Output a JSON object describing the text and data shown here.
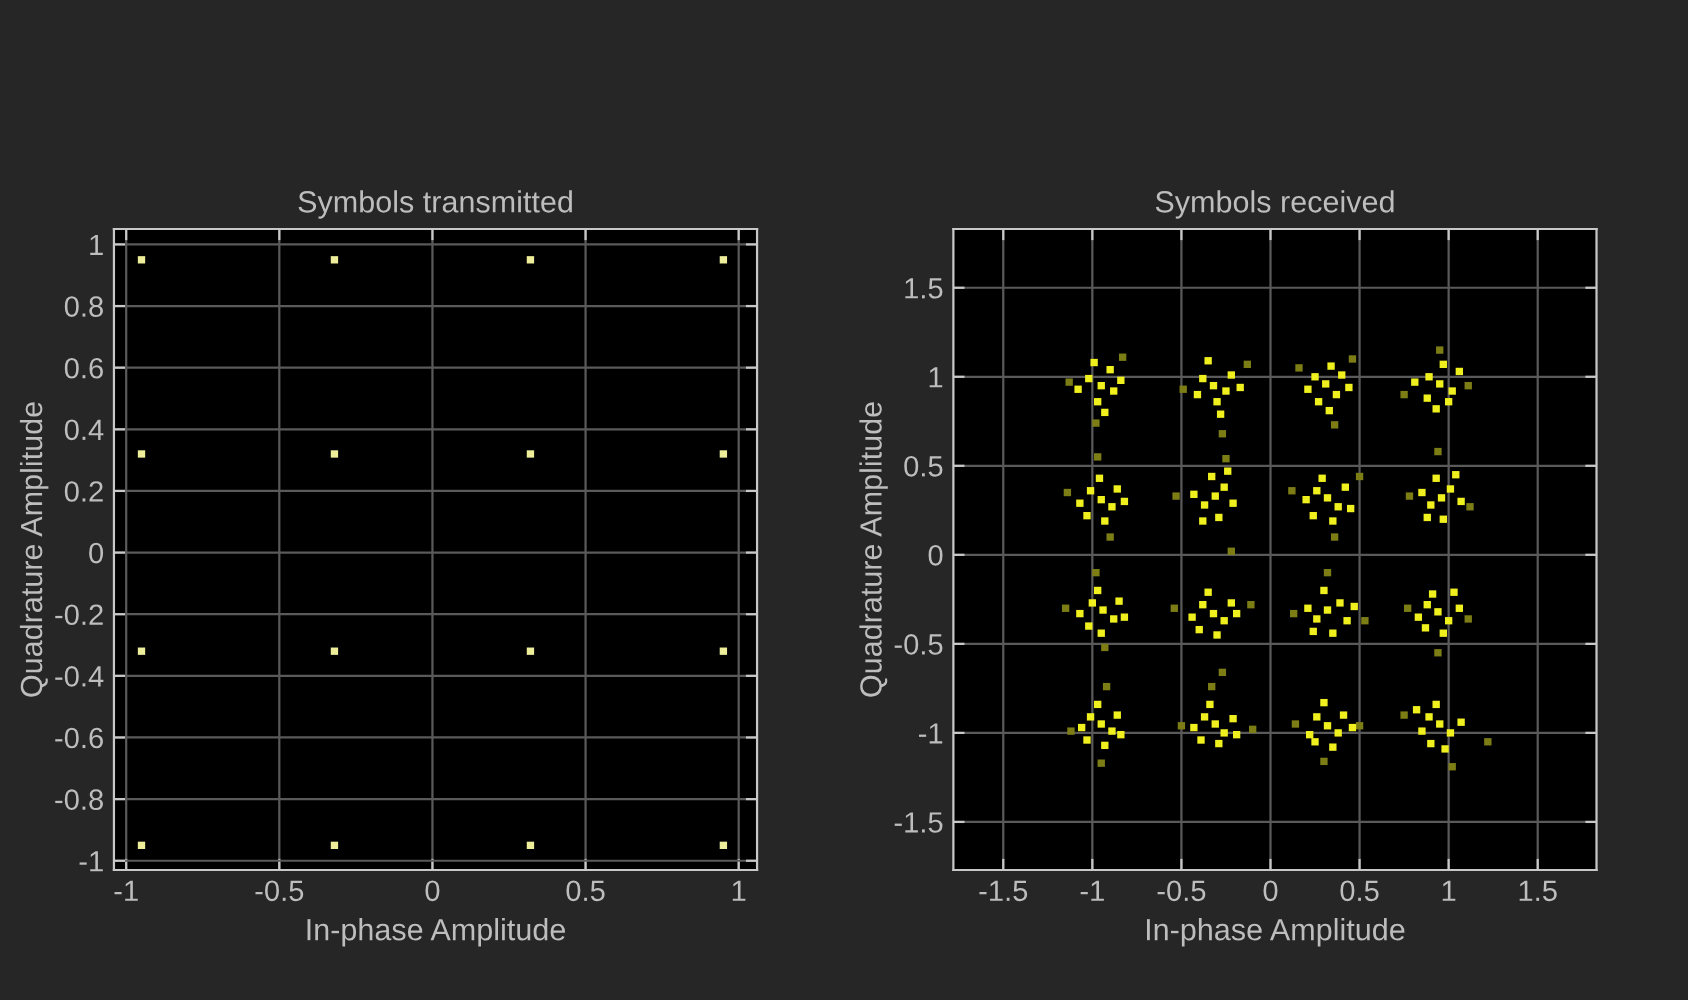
{
  "chart_data": [
    {
      "type": "scatter",
      "title": "Symbols transmitted",
      "xlabel": "In-phase Amplitude",
      "ylabel": "Quadrature Amplitude",
      "xlim": [
        -1.04,
        1.06
      ],
      "ylim": [
        -1.03,
        1.05
      ],
      "xticks": [
        -1,
        -0.5,
        0,
        0.5,
        1
      ],
      "yticks": [
        -1,
        -0.8,
        -0.6,
        -0.4,
        -0.2,
        0,
        0.2,
        0.4,
        0.6,
        0.8,
        1
      ],
      "grid": true,
      "marker": "square",
      "series": [
        {
          "color": "#eded9a",
          "x": [
            -0.95,
            -0.32,
            0.32,
            0.95,
            -0.95,
            -0.32,
            0.32,
            0.95,
            -0.95,
            -0.32,
            0.32,
            0.95,
            -0.95,
            -0.32,
            0.32,
            0.95
          ],
          "values": [
            0.95,
            0.95,
            0.95,
            0.95,
            0.32,
            0.32,
            0.32,
            0.32,
            -0.32,
            -0.32,
            -0.32,
            -0.32,
            -0.95,
            -0.95,
            -0.95,
            -0.95
          ]
        }
      ]
    },
    {
      "type": "scatter",
      "title": "Symbols received",
      "xlabel": "In-phase Amplitude",
      "ylabel": "Quadrature Amplitude",
      "xlim": [
        -1.78,
        1.83
      ],
      "ylim": [
        -1.77,
        1.83
      ],
      "xticks": [
        -1.5,
        -1,
        -0.5,
        0,
        0.5,
        1,
        1.5
      ],
      "yticks": [
        -1.5,
        -1,
        -0.5,
        0,
        0.5,
        1,
        1.5
      ],
      "grid": true,
      "marker": "square",
      "series": [
        {
          "color": "#7d7d16",
          "x": [
            -1.13,
            -0.83,
            -0.98,
            -0.49,
            -0.13,
            -0.27,
            0.16,
            0.46,
            0.36,
            0.75,
            1.11,
            0.95,
            -1.14,
            -0.97,
            -0.9,
            -0.53,
            -0.25,
            -0.22,
            0.12,
            0.5,
            0.36,
            0.78,
            1.12,
            0.94,
            -1.15,
            -0.93,
            -0.98,
            -0.54,
            -0.11,
            -0.27,
            0.13,
            0.53,
            0.32,
            0.77,
            1.11,
            0.94,
            -1.12,
            -0.95,
            -0.92,
            -0.5,
            -0.1,
            -0.33,
            0.14,
            0.5,
            0.3,
            0.75,
            1.22,
            1.02
          ],
          "values": [
            0.97,
            1.11,
            0.74,
            0.93,
            1.07,
            0.68,
            1.05,
            1.1,
            0.73,
            0.9,
            0.95,
            1.15,
            0.35,
            0.55,
            0.1,
            0.33,
            0.54,
            0.02,
            0.36,
            0.44,
            0.1,
            0.33,
            0.27,
            0.58,
            -0.3,
            -0.52,
            -0.1,
            -0.3,
            -0.28,
            -0.66,
            -0.33,
            -0.37,
            -0.1,
            -0.3,
            -0.36,
            -0.55,
            -0.99,
            -1.17,
            -0.74,
            -0.96,
            -0.98,
            -0.74,
            -0.95,
            -0.96,
            -1.16,
            -0.9,
            -1.05,
            -1.19
          ]
        },
        {
          "color": "#f0f01e",
          "x": [
            -0.95,
            -1.02,
            -0.88,
            -0.97,
            -0.9,
            -1.08,
            -0.84,
            -0.99,
            -0.93,
            -0.32,
            -0.38,
            -0.25,
            -0.3,
            -0.41,
            -0.22,
            -0.35,
            -0.28,
            -0.17,
            0.31,
            0.37,
            0.25,
            0.34,
            0.4,
            0.27,
            0.21,
            0.33,
            0.44,
            0.95,
            0.89,
            1.02,
            0.97,
            0.88,
            1.06,
            0.93,
            0.81,
            1.0,
            -0.95,
            -1.01,
            -0.89,
            -0.96,
            -1.07,
            -0.86,
            -0.93,
            -1.03,
            -0.82,
            -0.31,
            -0.37,
            -0.26,
            -0.33,
            -0.43,
            -0.21,
            -0.29,
            -0.38,
            -0.24,
            0.32,
            0.26,
            0.38,
            0.29,
            0.42,
            0.2,
            0.35,
            0.45,
            0.24,
            0.96,
            0.9,
            1.01,
            0.93,
            1.07,
            0.85,
            0.97,
            0.88,
            1.04,
            -0.94,
            -1.0,
            -0.88,
            -0.97,
            -1.07,
            -0.85,
            -0.95,
            -1.02,
            -0.82,
            -0.32,
            -0.38,
            -0.26,
            -0.35,
            -0.44,
            -0.22,
            -0.3,
            -0.4,
            -0.19,
            0.32,
            0.26,
            0.39,
            0.3,
            0.43,
            0.21,
            0.35,
            0.24,
            0.47,
            0.94,
            0.88,
            1.0,
            0.91,
            1.06,
            0.83,
            0.97,
            0.87,
            1.03,
            -0.95,
            -1.01,
            -0.89,
            -0.97,
            -1.06,
            -0.86,
            -0.93,
            -1.03,
            -0.84,
            -0.31,
            -0.37,
            -0.26,
            -0.34,
            -0.43,
            -0.21,
            -0.29,
            -0.39,
            -0.19,
            0.32,
            0.26,
            0.38,
            0.3,
            0.41,
            0.22,
            0.35,
            0.25,
            0.46,
            0.95,
            0.89,
            1.01,
            0.93,
            1.07,
            0.85,
            0.98,
            0.9,
            0.82
          ],
          "values": [
            0.95,
            0.99,
            0.92,
            0.86,
            1.04,
            0.93,
            0.98,
            1.08,
            0.8,
            0.95,
            0.99,
            0.92,
            0.86,
            0.9,
            1.01,
            1.09,
            0.79,
            0.94,
            0.96,
            0.9,
            1.0,
            1.06,
            1.01,
            0.86,
            0.93,
            0.81,
            0.94,
            0.96,
            1.0,
            0.92,
            1.07,
            0.88,
            1.03,
            0.82,
            0.97,
            0.86,
            0.31,
            0.36,
            0.27,
            0.43,
            0.29,
            0.37,
            0.19,
            0.22,
            0.3,
            0.33,
            0.28,
            0.38,
            0.44,
            0.34,
            0.29,
            0.21,
            0.19,
            0.47,
            0.32,
            0.36,
            0.27,
            0.43,
            0.38,
            0.31,
            0.19,
            0.26,
            0.22,
            0.32,
            0.28,
            0.37,
            0.43,
            0.3,
            0.35,
            0.2,
            0.21,
            0.45,
            -0.31,
            -0.27,
            -0.36,
            -0.2,
            -0.33,
            -0.26,
            -0.44,
            -0.4,
            -0.35,
            -0.33,
            -0.28,
            -0.37,
            -0.21,
            -0.35,
            -0.27,
            -0.45,
            -0.42,
            -0.33,
            -0.31,
            -0.36,
            -0.27,
            -0.2,
            -0.37,
            -0.3,
            -0.44,
            -0.43,
            -0.29,
            -0.32,
            -0.28,
            -0.37,
            -0.22,
            -0.3,
            -0.35,
            -0.44,
            -0.41,
            -0.21,
            -0.95,
            -0.91,
            -0.99,
            -0.84,
            -0.97,
            -0.9,
            -1.07,
            -1.04,
            -1.01,
            -0.95,
            -0.91,
            -1.0,
            -0.84,
            -0.97,
            -0.92,
            -1.06,
            -1.04,
            -1.01,
            -0.96,
            -0.91,
            -1.0,
            -0.83,
            -0.9,
            -1.01,
            -1.08,
            -1.05,
            -0.97,
            -0.95,
            -0.91,
            -1.0,
            -0.84,
            -0.94,
            -0.99,
            -1.09,
            -1.06,
            -0.87
          ]
        }
      ]
    }
  ]
}
